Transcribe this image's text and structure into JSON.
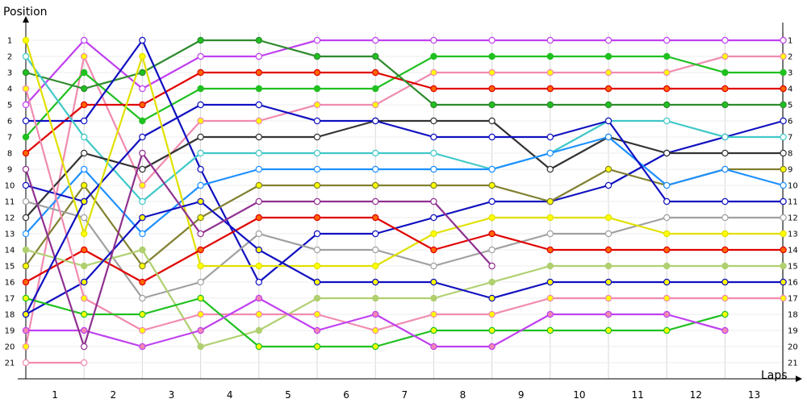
{
  "chart_data": {
    "type": "line",
    "title": "",
    "xlabel": "Laps",
    "ylabel": "Position",
    "x_tick_labels": [
      "1",
      "2",
      "3",
      "4",
      "5",
      "6",
      "7",
      "8",
      "9",
      "10",
      "11",
      "12",
      "13"
    ],
    "y_tick_labels": [
      "1",
      "2",
      "3",
      "4",
      "5",
      "6",
      "7",
      "8",
      "9",
      "10",
      "11",
      "12",
      "13",
      "14",
      "15",
      "16",
      "17",
      "18",
      "19",
      "20",
      "21"
    ],
    "ylim": [
      1,
      21
    ],
    "y_inverted": true,
    "grid": true,
    "legend": "none",
    "x": [
      0,
      1,
      2,
      3,
      4,
      5,
      6,
      7,
      8,
      9,
      10,
      11,
      12,
      13
    ],
    "series": [
      {
        "color": "#c040f0",
        "marker": "#ffffff",
        "values": [
          5,
          1,
          4,
          2,
          2,
          1,
          1,
          1,
          1,
          1,
          1,
          1,
          1,
          1
        ]
      },
      {
        "color": "#f08ab0",
        "marker": "#ffff00",
        "values": [
          20,
          2,
          10,
          6,
          6,
          5,
          5,
          3,
          3,
          3,
          3,
          3,
          2,
          2
        ]
      },
      {
        "color": "#20c020",
        "marker": "#20c020",
        "values": [
          7,
          3,
          6,
          4,
          4,
          4,
          4,
          2,
          2,
          2,
          2,
          2,
          3,
          3
        ]
      },
      {
        "color": "#e00000",
        "marker": "#ff6600",
        "values": [
          8,
          5,
          5,
          3,
          3,
          3,
          3,
          4,
          4,
          4,
          4,
          4,
          4,
          4
        ]
      },
      {
        "color": "#2e8b2e",
        "marker": "#20c020",
        "values": [
          3,
          4,
          3,
          1,
          1,
          2,
          2,
          5,
          5,
          5,
          5,
          5,
          5,
          5
        ]
      },
      {
        "color": "#1010c0",
        "marker": "#ffffff",
        "values": [
          6,
          6,
          1,
          9,
          16,
          13,
          13,
          12,
          11,
          11,
          10,
          8,
          7,
          6
        ]
      },
      {
        "color": "#40c8c8",
        "marker": "#ffffff",
        "values": [
          2,
          7,
          11,
          8,
          8,
          8,
          8,
          8,
          9,
          8,
          6,
          6,
          7,
          7
        ]
      },
      {
        "color": "#333333",
        "marker": "#ffffff",
        "values": [
          12,
          8,
          9,
          7,
          7,
          7,
          6,
          6,
          6,
          9,
          7,
          8,
          8,
          8
        ]
      },
      {
        "color": "#808030",
        "marker": "#ffff00",
        "values": [
          15,
          10,
          15,
          12,
          10,
          10,
          10,
          10,
          10,
          11,
          9,
          10,
          9,
          9
        ]
      },
      {
        "color": "#1e90ff",
        "marker": "#ffffff",
        "values": [
          13,
          9,
          13,
          10,
          9,
          9,
          9,
          9,
          9,
          8,
          7,
          10,
          9,
          10
        ]
      },
      {
        "color": "#1010c0",
        "marker": "#ffffff",
        "values": [
          10,
          11,
          7,
          5,
          5,
          6,
          6,
          7,
          7,
          7,
          6,
          11,
          11,
          11
        ]
      },
      {
        "color": "#a0a0a0",
        "marker": "#ffffff",
        "values": [
          11,
          12,
          17,
          16,
          13,
          14,
          14,
          15,
          14,
          13,
          13,
          12,
          12,
          12
        ]
      },
      {
        "color": "#e0e000",
        "marker": "#ffff00",
        "values": [
          1,
          13,
          2,
          15,
          15,
          15,
          15,
          13,
          12,
          12,
          12,
          13,
          13,
          13
        ]
      },
      {
        "color": "#e00000",
        "marker": "#ff6600",
        "values": [
          16,
          14,
          16,
          14,
          12,
          12,
          12,
          14,
          13,
          14,
          14,
          14,
          14,
          14
        ]
      },
      {
        "color": "#b0d070",
        "marker": "#b0d070",
        "values": [
          14,
          15,
          14,
          20,
          19,
          17,
          17,
          17,
          16,
          15,
          15,
          15,
          15,
          15
        ]
      },
      {
        "color": "#1010c0",
        "marker": "#ffff00",
        "values": [
          18,
          16,
          12,
          11,
          14,
          16,
          16,
          16,
          17,
          16,
          16,
          16,
          16,
          16
        ]
      },
      {
        "color": "#f08ab0",
        "marker": "#ffff00",
        "values": [
          4,
          17,
          19,
          18,
          18,
          18,
          19,
          18,
          18,
          17,
          17,
          17,
          17,
          17
        ]
      },
      {
        "color": "#20c020",
        "marker": "#ffff00",
        "values": [
          17,
          18,
          18,
          17,
          20,
          20,
          20,
          19,
          19,
          19,
          19,
          19,
          18,
          null
        ]
      },
      {
        "color": "#c040f0",
        "marker": "#f08ab0",
        "values": [
          19,
          19,
          20,
          19,
          17,
          19,
          18,
          20,
          20,
          18,
          18,
          18,
          19,
          null
        ]
      },
      {
        "color": "#903090",
        "marker": "#ffffff",
        "values": [
          9,
          20,
          8,
          13,
          11,
          11,
          11,
          11,
          15,
          null,
          null,
          null,
          null,
          null
        ]
      },
      {
        "color": "#f08ab0",
        "marker": "#ffffff",
        "values": [
          21,
          21,
          null,
          null,
          null,
          null,
          null,
          null,
          null,
          null,
          null,
          null,
          null,
          null
        ]
      },
      {
        "color": "#1010c0",
        "marker": "#ffff00",
        "values": [
          18,
          11,
          null,
          null,
          null,
          null,
          null,
          null,
          null,
          null,
          null,
          null,
          null,
          null
        ]
      }
    ]
  }
}
